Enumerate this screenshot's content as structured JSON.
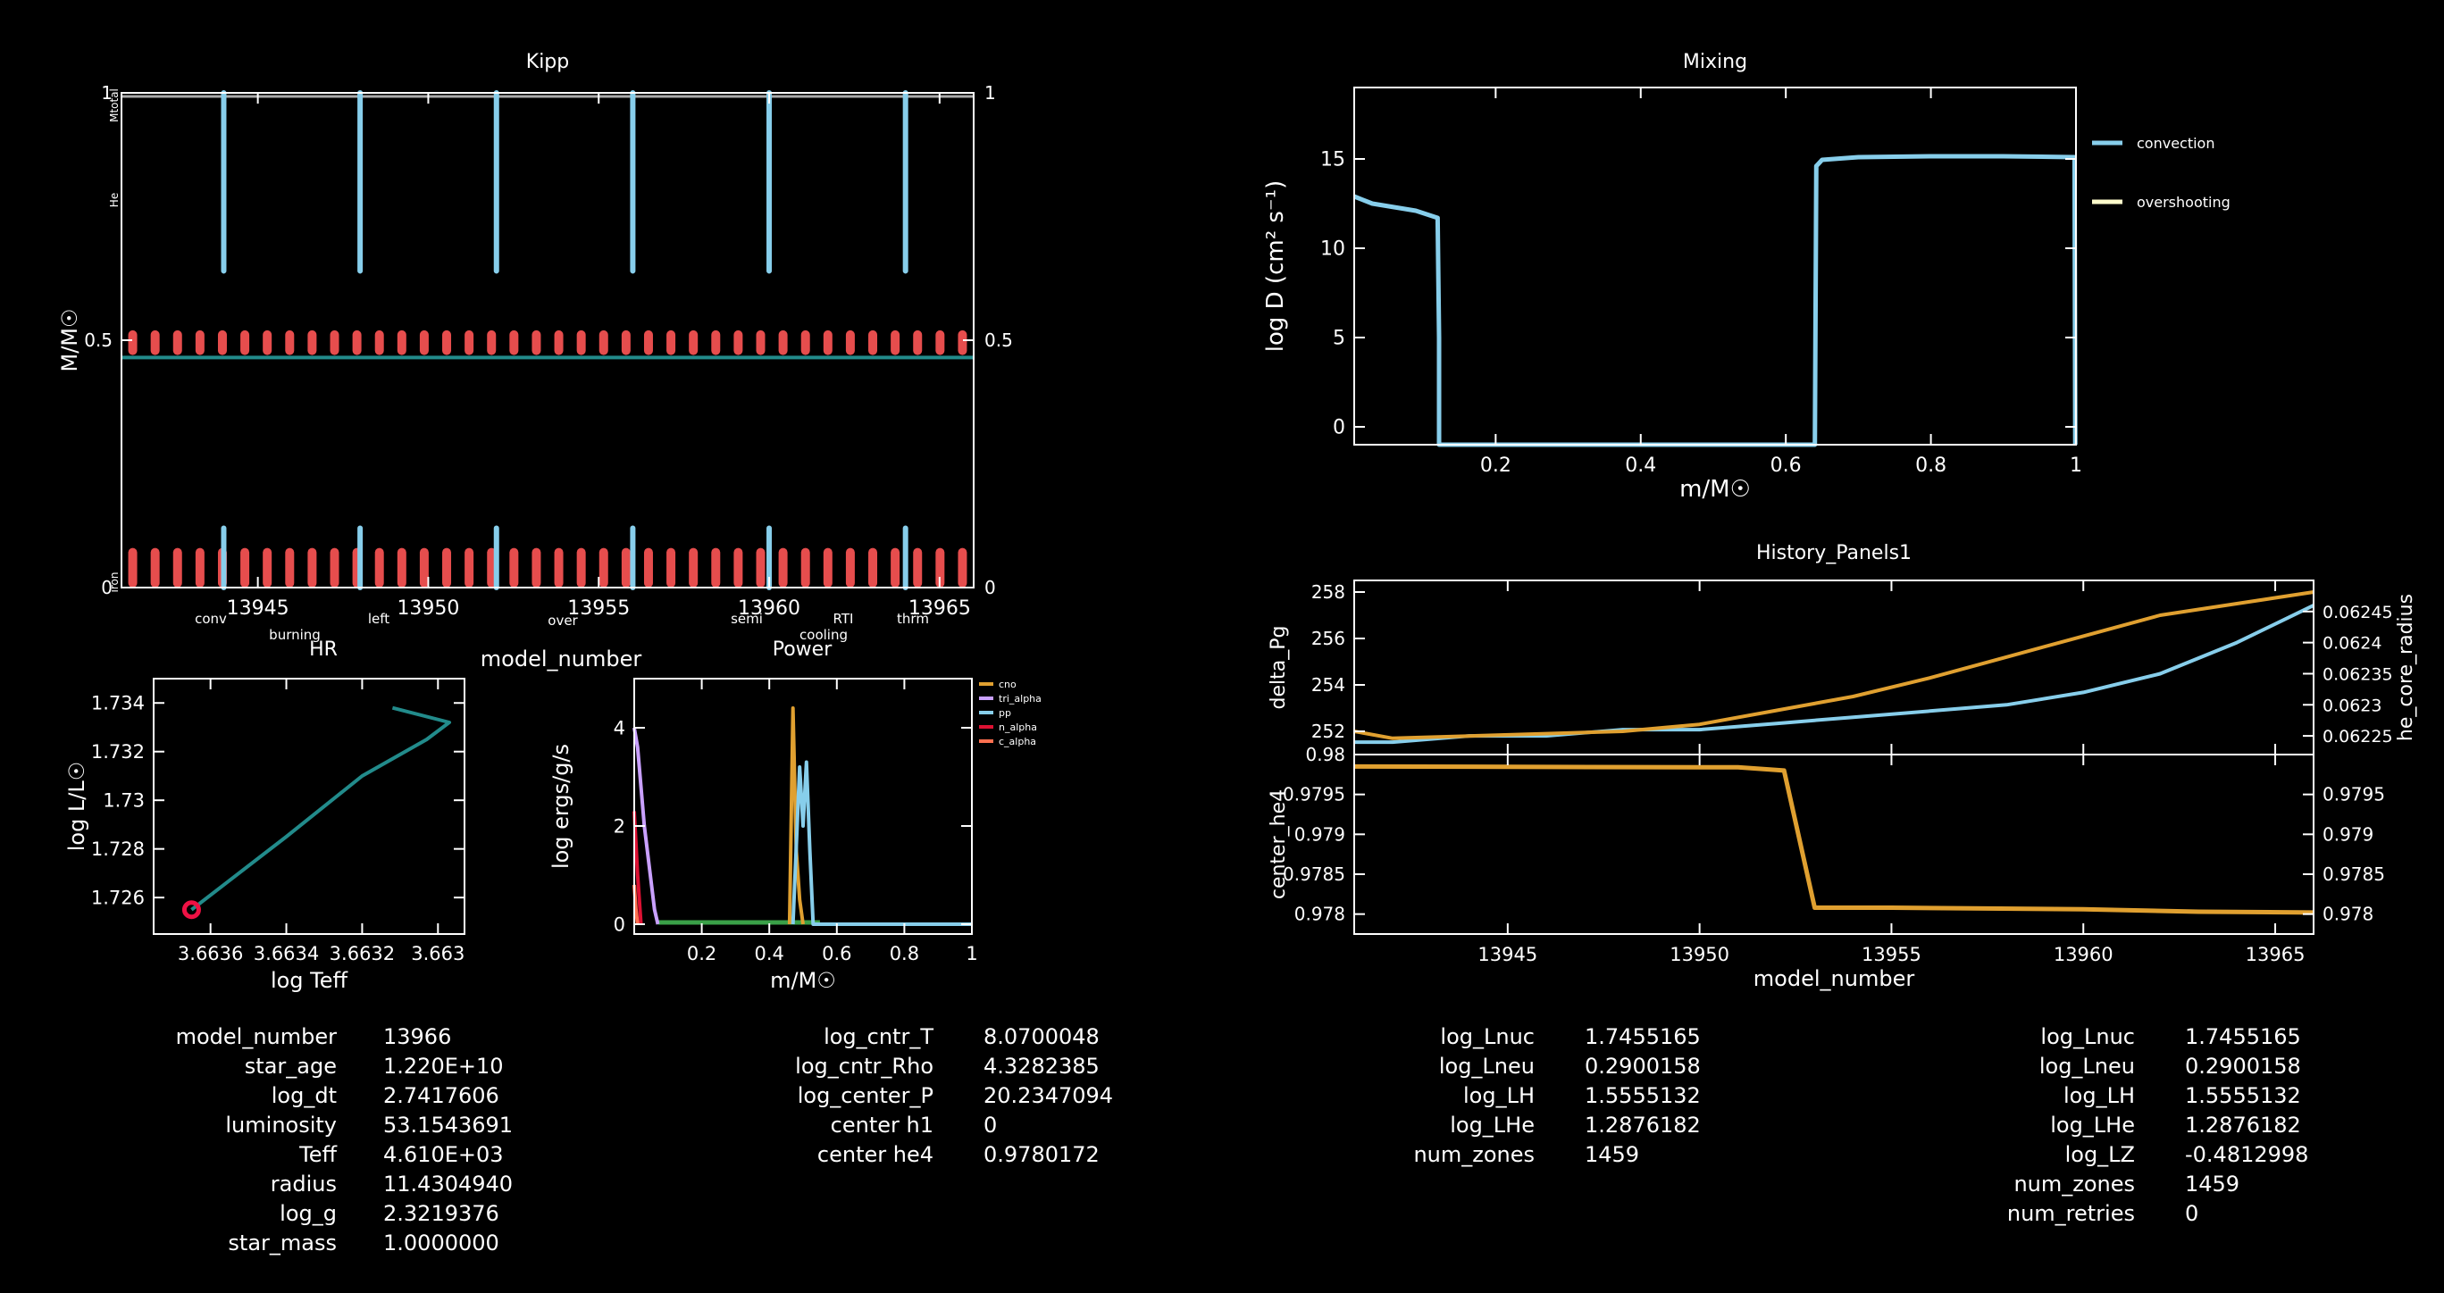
{
  "kipp": {
    "title": "Kipp",
    "ylabel": "M/M☉",
    "xlabel": "model_number",
    "xticks": [
      "13945",
      "13950",
      "13955",
      "13960",
      "13965"
    ],
    "yticks": [
      "0",
      "0.5",
      "1"
    ],
    "left_labels": [
      "Mtotal",
      "He",
      "iron"
    ],
    "legend": [
      {
        "label": "conv",
        "color": "#87ceeb"
      },
      {
        "label": "burning",
        "color": "#ff5050"
      },
      {
        "label": "left",
        "color": "#4a7dff"
      },
      {
        "label": "over",
        "color": "#ffffff"
      },
      {
        "label": "semi",
        "color": "#9fb4d8"
      },
      {
        "label": "cooling",
        "color": "#4a60ff"
      },
      {
        "label": "RTI",
        "color": "#ff7a4a"
      },
      {
        "label": "thrm",
        "color": "#b07cff"
      }
    ]
  },
  "mixing": {
    "title": "Mixing",
    "ylabel": "log D (cm² s⁻¹)",
    "xlabel": "m/M☉",
    "xticks": [
      "0.2",
      "0.4",
      "0.6",
      "0.8",
      "1"
    ],
    "yticks": [
      "0",
      "5",
      "10",
      "15"
    ],
    "legend": [
      {
        "label": "convection",
        "color": "#87ceeb"
      },
      {
        "label": "overshooting",
        "color": "#fffccc"
      }
    ]
  },
  "hr": {
    "title": "HR",
    "xlabel": "log Teff",
    "ylabel": "log L/L☉",
    "xticks": [
      "3.6636",
      "3.6634",
      "3.6632",
      "3.663"
    ],
    "yticks": [
      "1.726",
      "1.728",
      "1.73",
      "1.732",
      "1.734"
    ]
  },
  "power": {
    "title": "Power",
    "xlabel": "m/M☉",
    "ylabel": "log ergs/g/s",
    "xticks": [
      "0.2",
      "0.4",
      "0.6",
      "0.8",
      "1"
    ],
    "yticks": [
      "0",
      "2",
      "4"
    ],
    "legend": [
      {
        "label": "cno",
        "color": "#e0a030"
      },
      {
        "label": "tri_alpha",
        "color": "#c9a0ff"
      },
      {
        "label": "pp",
        "color": "#87ceeb"
      },
      {
        "label": "n_alpha",
        "color": "#dd1133"
      },
      {
        "label": "c_alpha",
        "color": "#ff7050"
      }
    ]
  },
  "history": {
    "title": "History_Panels1",
    "xlabel": "model_number",
    "xticks": [
      "13945",
      "13950",
      "13955",
      "13960",
      "13965"
    ],
    "top": {
      "ylabel_left": "delta_Pg",
      "ylabel_right": "he_core_radius",
      "yticks_left": [
        "252",
        "254",
        "256",
        "258"
      ],
      "yticks_right": [
        "0.06225",
        "0.0623",
        "0.06235",
        "0.0624",
        "0.06245"
      ]
    },
    "bottom": {
      "ylabel_left": "center_he4",
      "yticks_left": [
        "0.978",
        "0.9785",
        "0.979",
        "0.9795",
        "0.98"
      ],
      "yticks_right": [
        "0.978",
        "0.9785",
        "0.979",
        "0.9795"
      ]
    }
  },
  "tables": {
    "t1": [
      {
        "k": "model_number",
        "v": "13966"
      },
      {
        "k": "star_age",
        "v": "1.220E+10"
      },
      {
        "k": "log_dt",
        "v": "2.7417606"
      },
      {
        "k": "luminosity",
        "v": "53.1543691"
      },
      {
        "k": "Teff",
        "v": "4.610E+03"
      },
      {
        "k": "radius",
        "v": "11.4304940"
      },
      {
        "k": "log_g",
        "v": "2.3219376"
      },
      {
        "k": "star_mass",
        "v": "1.0000000"
      }
    ],
    "t2": [
      {
        "k": "log_cntr_T",
        "v": "8.0700048"
      },
      {
        "k": "log_cntr_Rho",
        "v": "4.3282385"
      },
      {
        "k": "log_center_P",
        "v": "20.2347094"
      },
      {
        "k": "center h1",
        "v": "0"
      },
      {
        "k": "center he4",
        "v": "0.9780172"
      }
    ],
    "t3": [
      {
        "k": "log_Lnuc",
        "v": "1.7455165"
      },
      {
        "k": "log_Lneu",
        "v": "0.2900158"
      },
      {
        "k": "log_LH",
        "v": "1.5555132"
      },
      {
        "k": "log_LHe",
        "v": "1.2876182"
      },
      {
        "k": "num_zones",
        "v": "1459"
      }
    ],
    "t4": [
      {
        "k": "log_Lnuc",
        "v": "1.7455165"
      },
      {
        "k": "log_Lneu",
        "v": "0.2900158"
      },
      {
        "k": "log_LH",
        "v": "1.5555132"
      },
      {
        "k": "log_LHe",
        "v": "1.2876182"
      },
      {
        "k": "log_LZ",
        "v": "-0.4812998"
      },
      {
        "k": "num_zones",
        "v": "1459"
      },
      {
        "k": "num_retries",
        "v": "0"
      }
    ]
  },
  "chart_data": [
    {
      "type": "line",
      "title": "Kipp",
      "xlabel": "model_number",
      "ylabel": "M/M☉",
      "xlim": [
        13941,
        13966
      ],
      "ylim": [
        0,
        1
      ],
      "series": [
        {
          "name": "He",
          "color": "#228b8b",
          "x": [
            13941,
            13966
          ],
          "y": [
            0.465,
            0.465
          ]
        }
      ],
      "convective_spikes_x": [
        13944,
        13948,
        13952,
        13956,
        13960,
        13964
      ],
      "upper_conv_range": [
        0.64,
        1.0
      ],
      "lower_conv_range": [
        0.0,
        0.12
      ],
      "burning_bands": [
        [
          0.47,
          0.52
        ],
        [
          0.0,
          0.08
        ]
      ]
    },
    {
      "type": "line",
      "title": "Mixing",
      "xlabel": "m/M☉",
      "ylabel": "log D (cm² s⁻¹)",
      "xlim": [
        0.005,
        1.0
      ],
      "ylim": [
        -1,
        19
      ],
      "series": [
        {
          "name": "convection",
          "color": "#87ceeb",
          "x": [
            0.005,
            0.03,
            0.06,
            0.09,
            0.12,
            0.122,
            0.122,
            0.64,
            0.642,
            0.65,
            0.7,
            0.8,
            0.9,
            0.998,
            0.999
          ],
          "y": [
            12.9,
            12.5,
            12.3,
            12.1,
            11.7,
            5,
            -1,
            -1,
            14.6,
            14.95,
            15.1,
            15.15,
            15.15,
            15.1,
            -1
          ]
        },
        {
          "name": "overshooting",
          "color": "#fffccc",
          "x": [],
          "y": []
        }
      ]
    },
    {
      "type": "line",
      "title": "HR",
      "xlabel": "log Teff",
      "ylabel": "log L/L☉",
      "xlim": [
        3.66375,
        3.66293
      ],
      "ylim": [
        1.7245,
        1.735
      ],
      "series": [
        {
          "name": "track",
          "color": "#228b8b",
          "x": [
            3.66365,
            3.6634,
            3.6632,
            3.66303,
            3.66297,
            3.66312
          ],
          "y": [
            1.7255,
            1.7285,
            1.731,
            1.7325,
            1.7332,
            1.7338
          ]
        }
      ],
      "current_point": {
        "x": 3.66365,
        "y": 1.7255
      }
    },
    {
      "type": "line",
      "title": "Power",
      "xlabel": "m/M☉",
      "ylabel": "log ergs/g/s",
      "xlim": [
        0,
        1
      ],
      "ylim": [
        -0.2,
        5
      ],
      "series": [
        {
          "name": "cno",
          "color": "#e0a030",
          "x": [
            0.46,
            0.47,
            0.48,
            0.49,
            0.5
          ],
          "y": [
            0,
            4.4,
            1.5,
            0.5,
            0
          ]
        },
        {
          "name": "tri_alpha",
          "color": "#c9a0ff",
          "x": [
            0.0,
            0.01,
            0.03,
            0.06,
            0.07
          ],
          "y": [
            4.0,
            3.6,
            2.0,
            0.3,
            0
          ]
        },
        {
          "name": "pp",
          "color": "#87ceeb",
          "x": [
            0.47,
            0.49,
            0.5,
            0.51,
            0.52,
            0.53,
            0.6,
            1.0
          ],
          "y": [
            0,
            3.2,
            2.0,
            3.3,
            1.5,
            0,
            0,
            0
          ]
        },
        {
          "name": "n_alpha",
          "color": "#dd1133",
          "x": [
            0.0,
            0.01,
            0.02
          ],
          "y": [
            2.3,
            1.0,
            0
          ]
        },
        {
          "name": "c_alpha",
          "color": "#ff7050",
          "x": [
            0.0,
            0.005,
            0.01
          ],
          "y": [
            0.8,
            0.3,
            0
          ]
        }
      ]
    },
    {
      "type": "line",
      "title": "History_Panels1",
      "xlabel": "model_number",
      "panels": [
        {
          "ylabel_left": "delta_Pg",
          "ylabel_right": "he_core_radius",
          "xlim": [
            13941,
            13966
          ],
          "ylim_left": [
            251,
            258.5
          ],
          "ylim_right": [
            0.06222,
            0.0625
          ],
          "series": [
            {
              "name": "delta_Pg",
              "axis": "left",
              "color": "#e0a030",
              "x": [
                13941,
                13942,
                13944,
                13946,
                13948,
                13950,
                13952,
                13954,
                13956,
                13958,
                13960,
                13962,
                13964,
                13966
              ],
              "y": [
                252.0,
                251.7,
                251.8,
                251.9,
                252.0,
                252.3,
                252.9,
                253.5,
                254.3,
                255.2,
                256.1,
                257.0,
                257.5,
                258.0
              ]
            },
            {
              "name": "he_core_radius",
              "axis": "right",
              "color": "#87ceeb",
              "x": [
                13941,
                13942,
                13944,
                13946,
                13948,
                13950,
                13952,
                13954,
                13956,
                13958,
                13960,
                13962,
                13964,
                13966
              ],
              "y": [
                0.06224,
                0.06224,
                0.06225,
                0.06225,
                0.06226,
                0.06226,
                0.06227,
                0.06228,
                0.06229,
                0.0623,
                0.06232,
                0.06235,
                0.0624,
                0.06246
              ]
            }
          ]
        },
        {
          "ylabel_left": "center_he4",
          "xlim": [
            13941,
            13966
          ],
          "ylim": [
            0.97775,
            0.98
          ],
          "series": [
            {
              "name": "center_he4",
              "color": "#e0a030",
              "x": [
                13941,
                13951,
                13952.2,
                13953,
                13955,
                13960,
                13963,
                13966
              ],
              "y": [
                0.97985,
                0.97984,
                0.9798,
                0.97808,
                0.97808,
                0.97806,
                0.97803,
                0.97802
              ]
            }
          ]
        }
      ]
    }
  ]
}
